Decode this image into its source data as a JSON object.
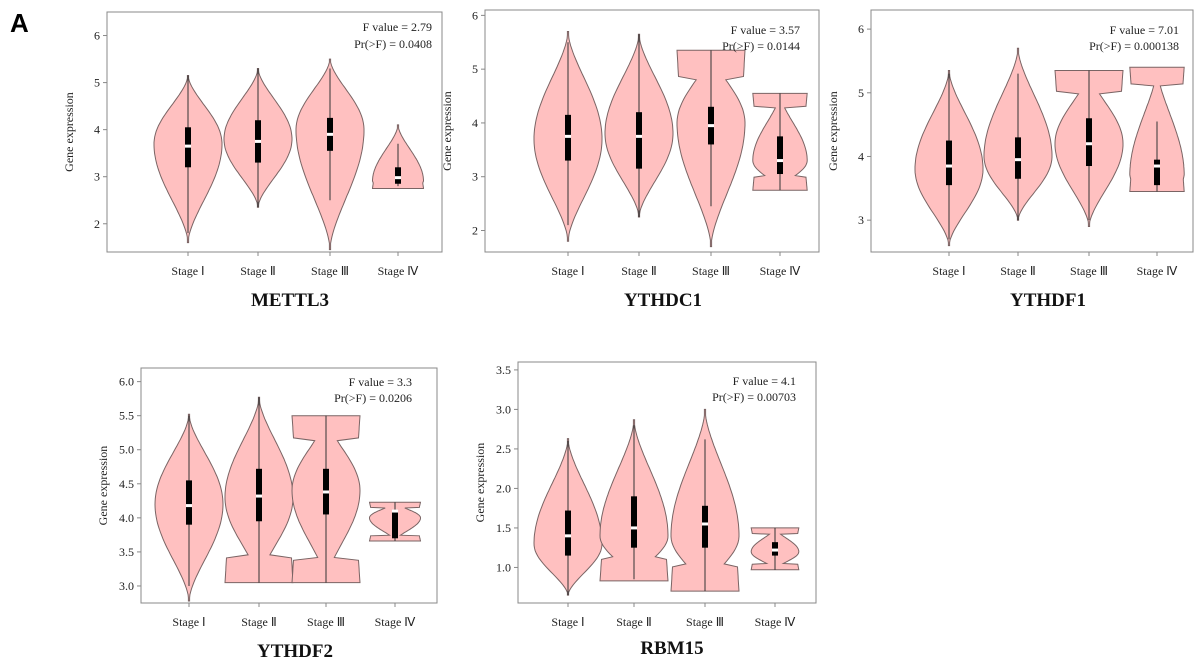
{
  "figure": {
    "panel_label": "A"
  },
  "chart_data": [
    {
      "type": "violin",
      "title": "METTL3",
      "xlabel": "",
      "ylabel": "Gene expression",
      "categories": [
        "Stage Ⅰ",
        "Stage Ⅱ",
        "Stage Ⅲ",
        "Stage Ⅳ"
      ],
      "ylim": [
        1.4,
        6.5
      ],
      "yticks": [
        2,
        3,
        4,
        5,
        6
      ],
      "tick_labels": [
        "2",
        "3",
        "4",
        "5",
        "6"
      ],
      "annotations": [
        "F value = 2.79",
        "Pr(>F) = 0.0408"
      ],
      "violins": [
        {
          "min": 1.6,
          "q1": 3.2,
          "median": 3.65,
          "q3": 4.05,
          "max": 5.15,
          "whisker_low": 1.8,
          "whisker_high": 5.15,
          "mode": 3.7,
          "width": 1.0
        },
        {
          "min": 2.35,
          "q1": 3.3,
          "median": 3.75,
          "q3": 4.2,
          "max": 5.3,
          "whisker_low": 2.35,
          "whisker_high": 5.3,
          "mode": 3.8,
          "width": 1.0
        },
        {
          "min": 1.45,
          "q1": 3.55,
          "median": 3.9,
          "q3": 4.25,
          "max": 5.5,
          "whisker_low": 2.5,
          "whisker_high": 5.3,
          "mode": 4.0,
          "width": 1.0
        },
        {
          "min": 2.75,
          "q1": 2.85,
          "median": 2.98,
          "q3": 3.2,
          "max": 4.1,
          "whisker_low": 2.8,
          "whisker_high": 3.7,
          "mode": 2.9,
          "width": 0.75,
          "flat_base": true
        }
      ]
    },
    {
      "type": "violin",
      "title": "YTHDC1",
      "xlabel": "",
      "ylabel": "Gene expression",
      "categories": [
        "Stage Ⅰ",
        "Stage Ⅱ",
        "Stage Ⅲ",
        "Stage Ⅳ"
      ],
      "ylim": [
        1.6,
        6.1
      ],
      "yticks": [
        2,
        3,
        4,
        5,
        6
      ],
      "tick_labels": [
        "2",
        "3",
        "4",
        "5",
        "6"
      ],
      "annotations": [
        "F value = 3.57",
        "Pr(>F) = 0.0144"
      ],
      "violins": [
        {
          "min": 1.8,
          "q1": 3.3,
          "median": 3.75,
          "q3": 4.15,
          "max": 5.7,
          "whisker_low": 2.1,
          "whisker_high": 5.5,
          "mode": 3.7,
          "width": 1.0
        },
        {
          "min": 2.25,
          "q1": 3.15,
          "median": 3.75,
          "q3": 4.2,
          "max": 5.65,
          "whisker_low": 2.25,
          "whisker_high": 5.65,
          "mode": 3.8,
          "width": 1.0
        },
        {
          "min": 1.7,
          "q1": 3.6,
          "median": 3.95,
          "q3": 4.3,
          "max": 5.35,
          "whisker_low": 2.45,
          "whisker_high": 5.35,
          "mode": 4.0,
          "width": 1.0,
          "flat_top": true
        },
        {
          "min": 2.75,
          "q1": 3.05,
          "median": 3.3,
          "q3": 3.75,
          "max": 4.55,
          "whisker_low": 2.75,
          "whisker_high": 4.55,
          "mode": 3.3,
          "width": 0.8,
          "flat_base": true,
          "flat_top": true
        }
      ]
    },
    {
      "type": "violin",
      "title": "YTHDF1",
      "xlabel": "",
      "ylabel": "Gene expression",
      "categories": [
        "Stage Ⅰ",
        "Stage Ⅱ",
        "Stage Ⅲ",
        "Stage Ⅳ"
      ],
      "ylim": [
        2.5,
        6.3
      ],
      "yticks": [
        3,
        4,
        5,
        6
      ],
      "tick_labels": [
        "3",
        "4",
        "5",
        "6"
      ],
      "annotations": [
        "F value = 7.01",
        "Pr(>F) = 0.000138"
      ],
      "violins": [
        {
          "min": 2.6,
          "q1": 3.55,
          "median": 3.85,
          "q3": 4.25,
          "max": 5.35,
          "whisker_low": 2.7,
          "whisker_high": 5.3,
          "mode": 3.8,
          "width": 1.0
        },
        {
          "min": 3.0,
          "q1": 3.65,
          "median": 3.95,
          "q3": 4.3,
          "max": 5.7,
          "whisker_low": 3.0,
          "whisker_high": 5.3,
          "mode": 4.0,
          "width": 1.0
        },
        {
          "min": 2.9,
          "q1": 3.85,
          "median": 4.2,
          "q3": 4.6,
          "max": 5.35,
          "whisker_low": 3.0,
          "whisker_high": 5.35,
          "mode": 4.2,
          "width": 1.0,
          "flat_top": true
        },
        {
          "min": 3.45,
          "q1": 3.55,
          "median": 3.85,
          "q3": 3.95,
          "max": 5.4,
          "whisker_low": 3.45,
          "whisker_high": 4.55,
          "mode": 3.7,
          "width": 0.8,
          "flat_base": true,
          "flat_top": true
        }
      ]
    },
    {
      "type": "violin",
      "title": "YTHDF2",
      "xlabel": "",
      "ylabel": "Gene expression",
      "categories": [
        "Stage Ⅰ",
        "Stage Ⅱ",
        "Stage Ⅲ",
        "Stage Ⅳ"
      ],
      "ylim": [
        2.75,
        6.2
      ],
      "yticks": [
        3.0,
        3.5,
        4.0,
        4.5,
        5.0,
        5.5,
        6.0
      ],
      "tick_labels": [
        "3.0",
        "3.5",
        "4.0",
        "4.5",
        "5.0",
        "5.5",
        "6.0"
      ],
      "annotations": [
        "F value = 3.3",
        "Pr(>F) = 0.0206"
      ],
      "violins": [
        {
          "min": 2.78,
          "q1": 3.9,
          "median": 4.18,
          "q3": 4.55,
          "max": 5.52,
          "whisker_low": 3.0,
          "whisker_high": 5.5,
          "mode": 4.2,
          "width": 1.0
        },
        {
          "min": 3.05,
          "q1": 3.95,
          "median": 4.32,
          "q3": 4.72,
          "max": 5.77,
          "whisker_low": 3.05,
          "whisker_high": 5.77,
          "mode": 4.3,
          "width": 1.0,
          "flat_base": true
        },
        {
          "min": 3.05,
          "q1": 4.05,
          "median": 4.38,
          "q3": 4.72,
          "max": 5.5,
          "whisker_low": 3.05,
          "whisker_high": 5.5,
          "mode": 4.4,
          "width": 1.0,
          "flat_base": true,
          "flat_top": true
        },
        {
          "min": 3.66,
          "q1": 3.7,
          "median": 4.1,
          "q3": 4.12,
          "max": 4.23,
          "whisker_low": 3.66,
          "whisker_high": 4.23,
          "mode": 4.0,
          "width": 0.75,
          "flat_base": true,
          "flat_top": true
        }
      ]
    },
    {
      "type": "violin",
      "title": "RBM15",
      "xlabel": "",
      "ylabel": "Gene expression",
      "categories": [
        "Stage Ⅰ",
        "Stage Ⅱ",
        "Stage Ⅲ",
        "Stage Ⅳ"
      ],
      "ylim": [
        0.55,
        3.6
      ],
      "yticks": [
        1.0,
        1.5,
        2.0,
        2.5,
        3.0,
        3.5
      ],
      "tick_labels": [
        "1.0",
        "1.5",
        "2.0",
        "2.5",
        "3.0",
        "3.5"
      ],
      "annotations": [
        "F value = 4.1",
        "Pr(>F) = 0.00703"
      ],
      "violins": [
        {
          "min": 0.65,
          "q1": 1.15,
          "median": 1.4,
          "q3": 1.72,
          "max": 2.63,
          "whisker_low": 0.65,
          "whisker_high": 2.6,
          "mode": 1.3,
          "width": 1.0
        },
        {
          "min": 0.83,
          "q1": 1.25,
          "median": 1.5,
          "q3": 1.9,
          "max": 2.87,
          "whisker_low": 0.85,
          "whisker_high": 2.8,
          "mode": 1.4,
          "width": 1.0,
          "flat_base": true
        },
        {
          "min": 0.7,
          "q1": 1.25,
          "median": 1.55,
          "q3": 1.78,
          "max": 3.0,
          "whisker_low": 0.7,
          "whisker_high": 2.62,
          "mode": 1.4,
          "width": 1.0,
          "flat_base": true
        },
        {
          "min": 0.97,
          "q1": 1.15,
          "median": 1.22,
          "q3": 1.32,
          "max": 1.5,
          "whisker_low": 0.97,
          "whisker_high": 1.5,
          "mode": 1.2,
          "width": 0.7,
          "flat_base": true,
          "flat_top": true
        }
      ]
    }
  ]
}
